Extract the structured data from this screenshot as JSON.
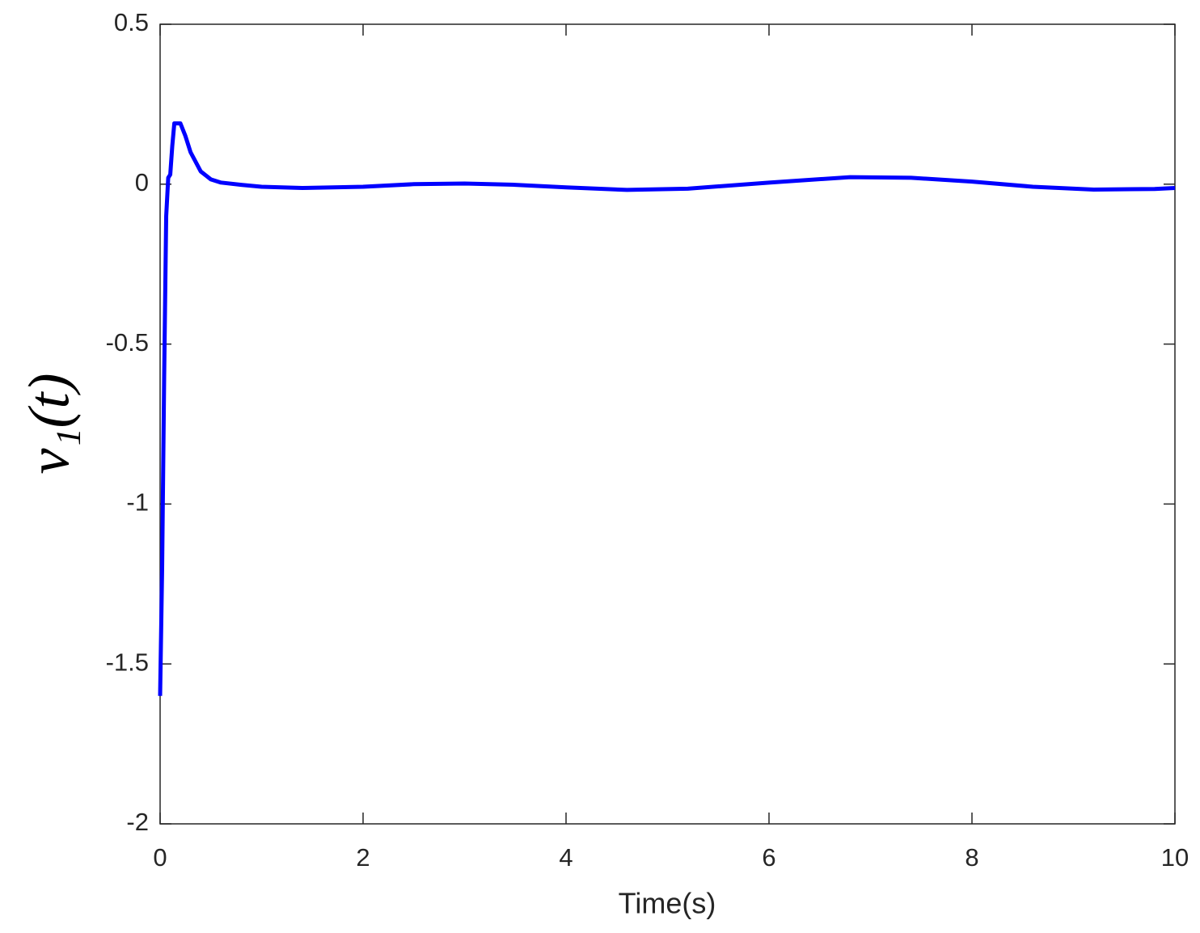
{
  "chart_data": {
    "type": "line",
    "x_label": "Time(s)",
    "y_label": "ν₁(t)",
    "xlim": [
      0,
      10
    ],
    "xticks": [
      0,
      2,
      4,
      6,
      8,
      10
    ],
    "ylim": [
      -2,
      0.5
    ],
    "yticks": [
      0.5,
      0,
      -0.5,
      -1,
      -1.5,
      -2
    ],
    "grid": false,
    "series": [
      {
        "color": "#0000ff",
        "x": [
          0,
          0.02,
          0.04,
          0.06,
          0.08,
          0.1,
          0.12,
          0.14,
          0.2,
          0.25,
          0.3,
          0.4,
          0.5,
          0.6,
          0.8,
          1.0,
          1.4,
          2,
          2.5,
          3,
          3.5,
          4,
          4.6,
          5.2,
          6,
          6.8,
          7.4,
          8,
          8.6,
          9.2,
          9.8,
          10
        ],
        "values": [
          -1.6,
          -1.2,
          -0.6,
          -0.1,
          0.02,
          0.03,
          0.12,
          0.19,
          0.19,
          0.15,
          0.1,
          0.04,
          0.015,
          0.005,
          -0.002,
          -0.008,
          -0.012,
          -0.008,
          0,
          0.002,
          -0.002,
          -0.01,
          -0.018,
          -0.014,
          0.005,
          0.022,
          0.02,
          0.008,
          -0.008,
          -0.017,
          -0.015,
          -0.012
        ]
      }
    ]
  }
}
